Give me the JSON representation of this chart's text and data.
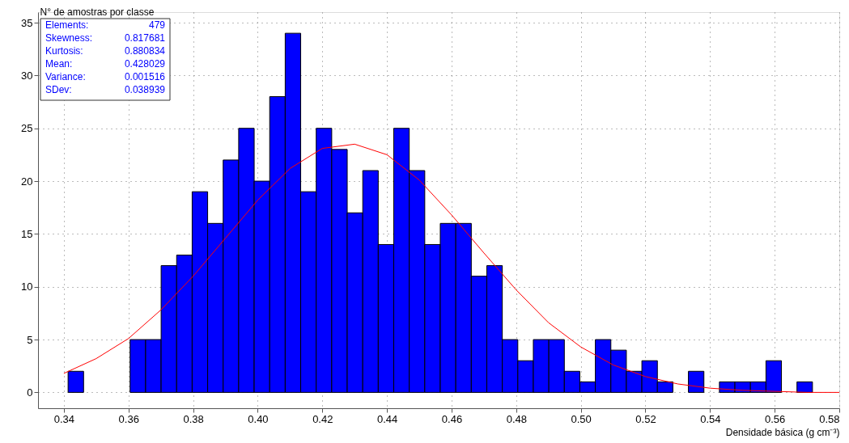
{
  "chart_data": {
    "type": "histogram",
    "xlabel": "Densidade básica (g cm⁻³)",
    "ylabel": "N° de amostras por classe",
    "bins": [
      0.3413,
      0.3461,
      0.3509,
      0.3557,
      0.3605,
      0.3653,
      0.3701,
      0.3749,
      0.3797,
      0.3845,
      0.3893,
      0.3941,
      0.3989,
      0.4037,
      0.4085,
      0.4133,
      0.4181,
      0.4229,
      0.4277,
      0.4325,
      0.4373,
      0.4421,
      0.4469,
      0.4517,
      0.4565,
      0.4613,
      0.4661,
      0.4709,
      0.4757,
      0.4805,
      0.4853,
      0.4901,
      0.4949,
      0.4997,
      0.5045,
      0.5093,
      0.5141,
      0.5189,
      0.5237,
      0.5285,
      0.5333,
      0.5381,
      0.5429,
      0.5477,
      0.5525,
      0.5573,
      0.5621,
      0.5669,
      0.5717
    ],
    "series": [
      {
        "type": "histogram",
        "color": "#0000ff",
        "values": [
          2,
          0,
          0,
          0,
          5,
          5,
          12,
          13,
          19,
          16,
          22,
          25,
          20,
          28,
          34,
          19,
          25,
          23,
          17,
          21,
          14,
          25,
          21,
          14,
          16,
          16,
          11,
          12,
          5,
          3,
          5,
          5,
          2,
          1,
          5,
          4,
          2,
          3,
          1,
          0,
          2,
          0,
          1,
          1,
          1,
          3,
          0,
          1
        ]
      },
      {
        "type": "line",
        "color": "#ff0000",
        "x": [
          0.34,
          0.35,
          0.36,
          0.37,
          0.38,
          0.39,
          0.4,
          0.41,
          0.42,
          0.43,
          0.44,
          0.45,
          0.46,
          0.47,
          0.48,
          0.49,
          0.5,
          0.51,
          0.52,
          0.53,
          0.54,
          0.55,
          0.56,
          0.57,
          0.58
        ],
        "values": [
          1.8,
          3.2,
          5.1,
          7.8,
          11.0,
          14.6,
          18.2,
          21.2,
          23.1,
          23.5,
          22.5,
          20.1,
          16.8,
          13.2,
          9.7,
          6.6,
          4.3,
          2.6,
          1.5,
          0.8,
          0.4,
          0.2,
          0.1,
          0.0,
          0.0
        ]
      }
    ],
    "xlim": [
      0.332,
      0.58
    ],
    "xticks": [
      0.34,
      0.36,
      0.38,
      {
        "value": 0.4,
        "label": "0.40"
      },
      0.42,
      0.44,
      0.46,
      0.48,
      {
        "value": 0.5,
        "label": "0.50"
      },
      0.52,
      0.54,
      0.56,
      0.58
    ],
    "ylim": [
      -1.5,
      36
    ],
    "yticks": [
      0,
      5,
      10,
      15,
      20,
      25,
      30,
      35
    ],
    "grid": true,
    "annotations": [
      "Elements: 479",
      "Skewness: 0.817681",
      "Kurtosis: 0.880834",
      "Mean: 0.428029",
      "Variance: 0.001516",
      "SDev: 0.038939"
    ]
  }
}
